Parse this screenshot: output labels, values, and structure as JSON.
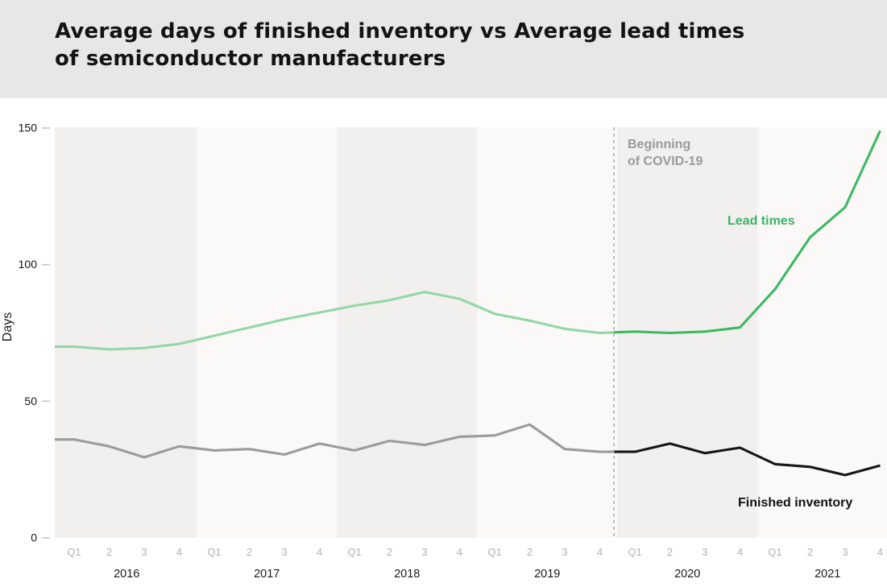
{
  "header": {
    "title_lines": [
      "Average days of finished inventory vs Average lead times",
      "of semiconductor manufacturers"
    ]
  },
  "chart_data": {
    "type": "line",
    "title": "Average days of finished inventory vs Average lead times of semiconductor manufacturers",
    "ylabel": "Days",
    "xlabel": "",
    "ylim": [
      0,
      150
    ],
    "yticks": [
      0,
      50,
      100,
      150
    ],
    "grid": "off",
    "legend_position": "inline-labels",
    "plot_background": "alternating-year-bands",
    "band_colors": [
      "#f2f0ee",
      "#faf9f8"
    ],
    "years": [
      "2016",
      "2017",
      "2018",
      "2019",
      "2020",
      "2021"
    ],
    "quarter_tick_labels": [
      "Q1",
      "2",
      "3",
      "4",
      "Q1",
      "2",
      "3",
      "4",
      "Q1",
      "2",
      "3",
      "4",
      "Q1",
      "2",
      "3",
      "4",
      "Q1",
      "2",
      "3",
      "4",
      "Q1",
      "2",
      "3",
      "4"
    ],
    "categories": [
      "2016 Q1",
      "2016 Q2",
      "2016 Q3",
      "2016 Q4",
      "2017 Q1",
      "2017 Q2",
      "2017 Q3",
      "2017 Q4",
      "2018 Q1",
      "2018 Q2",
      "2018 Q3",
      "2018 Q4",
      "2019 Q1",
      "2019 Q2",
      "2019 Q3",
      "2019 Q4",
      "2020 Q1",
      "2020 Q2",
      "2020 Q3",
      "2020 Q4",
      "2021 Q1",
      "2021 Q2",
      "2021 Q3",
      "2021 Q4"
    ],
    "series": [
      {
        "name": "Lead times",
        "values": [
          70,
          69,
          69.5,
          71,
          74,
          77,
          80,
          82.5,
          85,
          87,
          90,
          87.5,
          82,
          79.5,
          76.5,
          75,
          75.5,
          75,
          75.5,
          77,
          91,
          110,
          121,
          149
        ],
        "color_before_covid": "#93d7a4",
        "color_after_covid": "#3eb864",
        "label_color": "#3bb262"
      },
      {
        "name": "Finished inventory",
        "values": [
          36,
          33.5,
          29.5,
          33.5,
          32,
          32.5,
          30.5,
          34.5,
          32,
          35.5,
          34,
          37,
          37.5,
          41.5,
          32.5,
          31.5,
          31.5,
          34.5,
          31,
          33,
          27,
          26,
          23,
          26.5
        ],
        "color_before_covid": "#9b9b9b",
        "color_after_covid": "#161616",
        "label_color": "#111111"
      }
    ],
    "annotation": {
      "text": "Beginning of COVID-19",
      "label_lines": [
        "Beginning",
        "of COVID-19"
      ],
      "position": "between 2019 Q4 and 2020 Q1",
      "color": "#9a9a9a",
      "line_style": "dashed",
      "line_color": "#a6a6a6"
    }
  }
}
